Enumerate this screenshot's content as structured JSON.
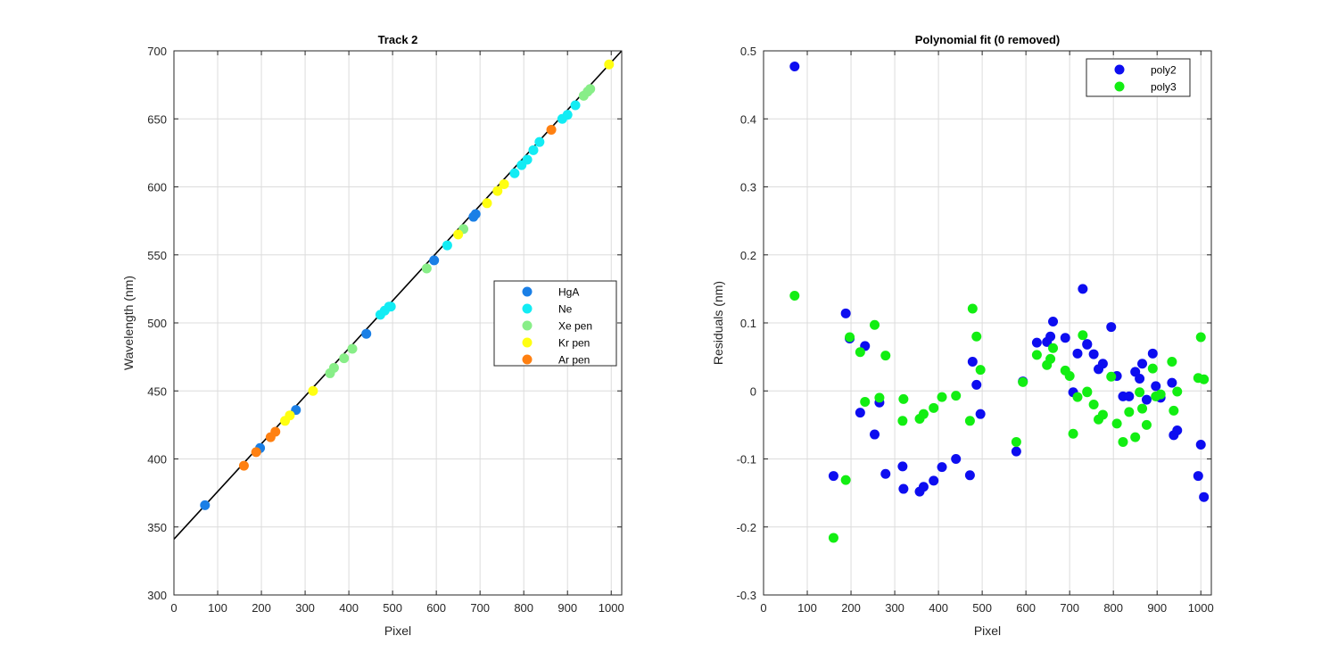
{
  "chart_data": [
    {
      "type": "scatter",
      "title": "Track 2",
      "xlabel": "Pixel",
      "ylabel": "Wavelength (nm)",
      "xlim": [
        0,
        1024
      ],
      "ylim": [
        300,
        700
      ],
      "xticks": [
        0,
        100,
        200,
        300,
        400,
        500,
        600,
        700,
        800,
        900,
        1000
      ],
      "yticks": [
        300,
        350,
        400,
        450,
        500,
        550,
        600,
        650,
        700
      ],
      "grid": true,
      "legend_position": "right",
      "fit_line": {
        "x": [
          0,
          1024
        ],
        "y": [
          341,
          700
        ],
        "color": "#000000"
      },
      "series": [
        {
          "name": "HgA",
          "color": "#1a7fe6",
          "x": [
            71,
            197,
            279,
            440,
            595,
            685,
            690
          ],
          "y": [
            366,
            408,
            436,
            492,
            546,
            578,
            580
          ]
        },
        {
          "name": "Ne",
          "color": "#12ecf4",
          "x": [
            472,
            482,
            492,
            496,
            625,
            779,
            795,
            808,
            822,
            836,
            888,
            900,
            918
          ],
          "y": [
            506,
            509,
            512,
            512,
            557,
            610,
            616,
            620,
            627,
            633,
            650,
            653,
            660
          ]
        },
        {
          "name": "Xe pen",
          "color": "#88ee88",
          "x": [
            357,
            366,
            389,
            408,
            578,
            662,
            937,
            946,
            952
          ],
          "y": [
            463,
            467,
            474,
            481,
            540,
            569,
            667,
            670,
            672
          ]
        },
        {
          "name": "Kr pen",
          "color": "#ffff11",
          "x": [
            254,
            265,
            318,
            650,
            716,
            740,
            755,
            995
          ],
          "y": [
            428,
            432,
            450,
            565,
            588,
            597,
            602,
            690
          ]
        },
        {
          "name": "Ar pen",
          "color": "#ff8011",
          "x": [
            160,
            188,
            221,
            232,
            863
          ],
          "y": [
            395,
            405,
            416,
            420,
            642
          ]
        }
      ]
    },
    {
      "type": "scatter",
      "title": "Polynomial fit  (0 removed)",
      "xlabel": "Pixel",
      "ylabel": "Residuals (nm)",
      "xlim": [
        0,
        1024
      ],
      "ylim": [
        -0.3,
        0.5
      ],
      "xticks": [
        0,
        100,
        200,
        300,
        400,
        500,
        600,
        700,
        800,
        900,
        1000
      ],
      "yticks": [
        -0.3,
        -0.2,
        -0.1,
        0,
        0.1,
        0.2,
        0.3,
        0.4,
        0.5
      ],
      "grid": true,
      "legend_position": "top-right",
      "series": [
        {
          "name": "poly2",
          "color": "#0d0df0",
          "x": [
            71,
            160,
            188,
            197,
            221,
            232,
            254,
            265,
            279,
            318,
            320,
            357,
            366,
            389,
            408,
            440,
            472,
            478,
            487,
            496,
            578,
            593,
            625,
            648,
            656,
            662,
            690,
            708,
            718,
            730,
            740,
            740,
            755,
            766,
            776,
            795,
            808,
            822,
            836,
            850,
            860,
            866,
            876,
            890,
            897,
            908,
            934,
            938,
            946,
            994,
            1000,
            1007
          ],
          "y": [
            0.477,
            -0.125,
            0.114,
            0.077,
            -0.032,
            0.066,
            -0.064,
            -0.017,
            -0.122,
            -0.111,
            -0.144,
            -0.148,
            -0.141,
            -0.132,
            -0.112,
            -0.1,
            -0.124,
            0.043,
            0.009,
            -0.034,
            -0.089,
            0.014,
            0.071,
            0.072,
            0.08,
            0.102,
            0.078,
            -0.002,
            0.055,
            0.15,
            0.068,
            0.069,
            0.054,
            0.032,
            0.04,
            0.094,
            0.022,
            -0.008,
            -0.008,
            0.028,
            0.018,
            0.04,
            -0.013,
            0.055,
            0.007,
            -0.01,
            0.012,
            -0.065,
            -0.058,
            -0.125,
            -0.079,
            -0.156
          ]
        },
        {
          "name": "poly3",
          "color": "#12ee12",
          "x": [
            71,
            160,
            188,
            197,
            221,
            232,
            254,
            265,
            279,
            318,
            320,
            357,
            366,
            389,
            408,
            440,
            472,
            478,
            487,
            496,
            578,
            593,
            625,
            648,
            656,
            662,
            690,
            700,
            708,
            718,
            730,
            740,
            740,
            755,
            766,
            776,
            795,
            808,
            822,
            836,
            850,
            860,
            866,
            876,
            890,
            897,
            908,
            934,
            938,
            946,
            994,
            1000,
            1007
          ],
          "y": [
            0.14,
            -0.216,
            -0.131,
            0.079,
            0.057,
            -0.016,
            0.097,
            -0.01,
            0.052,
            -0.044,
            -0.012,
            -0.041,
            -0.034,
            -0.025,
            -0.009,
            -0.007,
            -0.044,
            0.121,
            0.08,
            0.031,
            -0.075,
            0.013,
            0.053,
            0.038,
            0.047,
            0.063,
            0.03,
            0.022,
            -0.063,
            -0.009,
            0.082,
            -0.002,
            -0.001,
            -0.02,
            -0.042,
            -0.035,
            0.021,
            -0.048,
            -0.075,
            -0.031,
            -0.068,
            -0.002,
            -0.026,
            -0.05,
            0.033,
            -0.008,
            -0.005,
            0.043,
            -0.029,
            -0.001,
            0.019,
            0.079,
            0.017
          ]
        }
      ]
    }
  ]
}
